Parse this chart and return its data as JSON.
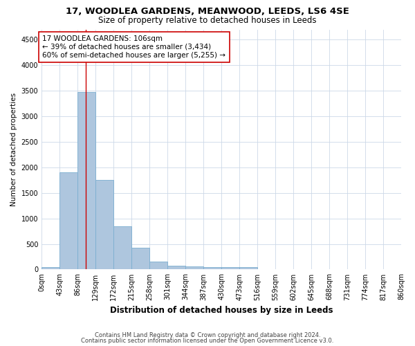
{
  "title": "17, WOODLEA GARDENS, MEANWOOD, LEEDS, LS6 4SE",
  "subtitle": "Size of property relative to detached houses in Leeds",
  "xlabel": "Distribution of detached houses by size in Leeds",
  "ylabel": "Number of detached properties",
  "bin_edges": [
    0,
    43,
    86,
    129,
    172,
    215,
    258,
    301,
    344,
    387,
    430,
    473,
    516,
    559,
    602,
    645,
    688,
    731,
    774,
    817,
    860
  ],
  "bar_heights": [
    50,
    1900,
    3470,
    1760,
    840,
    430,
    160,
    80,
    55,
    50,
    50,
    50,
    0,
    0,
    0,
    0,
    0,
    0,
    0,
    0
  ],
  "bar_color": "#aec6de",
  "bar_edge_color": "#7aaed0",
  "property_size": 106,
  "property_line_color": "#cc0000",
  "annotation_text": "17 WOODLEA GARDENS: 106sqm\n← 39% of detached houses are smaller (3,434)\n60% of semi-detached houses are larger (5,255) →",
  "annotation_box_color": "#ffffff",
  "annotation_box_edge_color": "#cc0000",
  "ylim": [
    0,
    4700
  ],
  "yticks": [
    0,
    500,
    1000,
    1500,
    2000,
    2500,
    3000,
    3500,
    4000,
    4500
  ],
  "footnote1": "Contains HM Land Registry data © Crown copyright and database right 2024.",
  "footnote2": "Contains public sector information licensed under the Open Government Licence v3.0.",
  "bg_color": "#ffffff",
  "grid_color": "#ccd8e8",
  "title_fontsize": 9.5,
  "subtitle_fontsize": 8.5,
  "xlabel_fontsize": 8.5,
  "ylabel_fontsize": 7.5,
  "tick_fontsize": 7,
  "annotation_fontsize": 7.5,
  "footnote_fontsize": 6
}
